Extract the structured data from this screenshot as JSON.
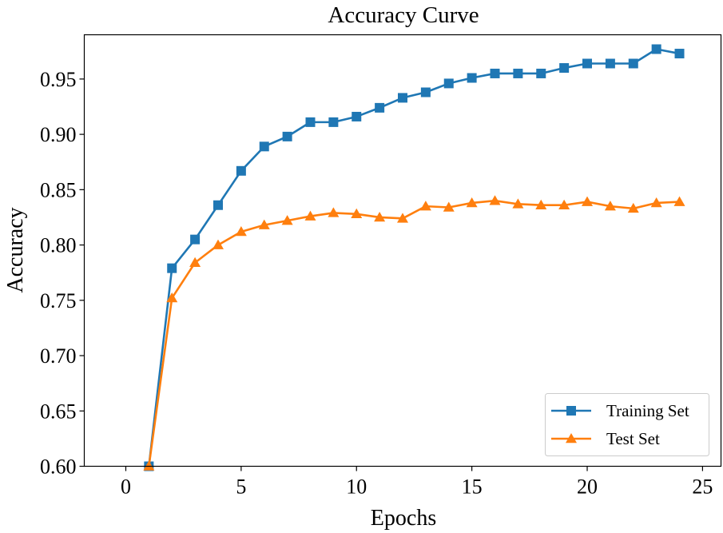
{
  "chart_data": {
    "type": "line",
    "title": "Accuracy Curve",
    "xlabel": "Epochs",
    "ylabel": "Accuracy",
    "xlim": [
      -1.8,
      25.8
    ],
    "ylim": [
      0.6,
      0.99
    ],
    "xticks": [
      0,
      5,
      10,
      15,
      20,
      25
    ],
    "yticks": [
      0.6,
      0.65,
      0.7,
      0.75,
      0.8,
      0.85,
      0.9,
      0.95
    ],
    "ytick_labels": [
      "0.60",
      "0.65",
      "0.70",
      "0.75",
      "0.80",
      "0.85",
      "0.90",
      "0.95"
    ],
    "grid": false,
    "legend_position": "lower-right",
    "x": [
      1,
      2,
      3,
      4,
      5,
      6,
      7,
      8,
      9,
      10,
      11,
      12,
      13,
      14,
      15,
      16,
      17,
      18,
      19,
      20,
      21,
      22,
      23,
      24
    ],
    "series": [
      {
        "name": "Training Set",
        "color": "#1f77b4",
        "marker": "square",
        "values": [
          0.6,
          0.779,
          0.805,
          0.836,
          0.867,
          0.889,
          0.898,
          0.911,
          0.911,
          0.916,
          0.924,
          0.933,
          0.938,
          0.946,
          0.951,
          0.955,
          0.955,
          0.955,
          0.96,
          0.964,
          0.964,
          0.964,
          0.977,
          0.973
        ]
      },
      {
        "name": "Test Set",
        "color": "#ff7f0e",
        "marker": "triangle",
        "values": [
          0.6,
          0.752,
          0.784,
          0.8,
          0.812,
          0.818,
          0.822,
          0.826,
          0.829,
          0.828,
          0.825,
          0.824,
          0.835,
          0.834,
          0.838,
          0.84,
          0.837,
          0.836,
          0.836,
          0.839,
          0.835,
          0.833,
          0.838,
          0.839
        ]
      }
    ]
  }
}
